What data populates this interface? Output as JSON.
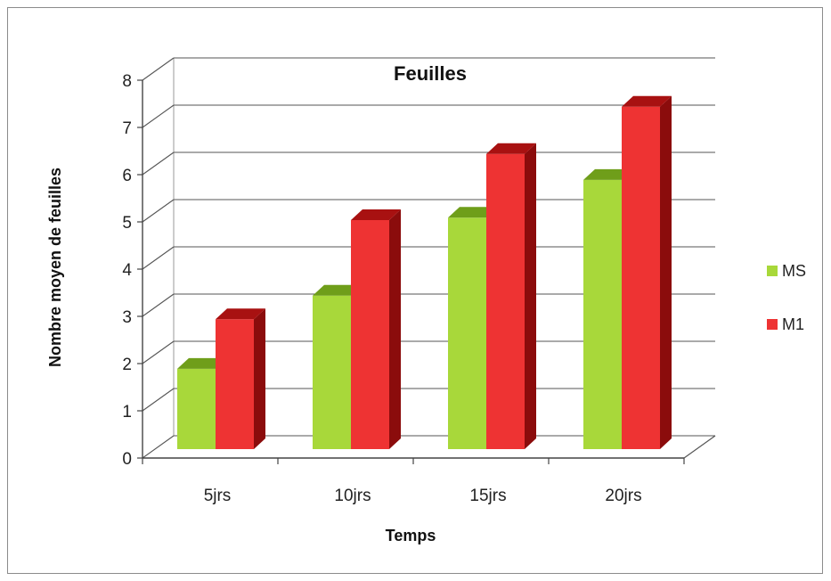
{
  "chart_data": {
    "type": "bar",
    "title": "Feuilles",
    "xlabel": "Temps",
    "ylabel": "Nombre moyen de feuilles",
    "categories": [
      "5jrs",
      "10jrs",
      "15jrs",
      "20jrs"
    ],
    "series": [
      {
        "name": "MS",
        "values": [
          1.7,
          3.25,
          4.9,
          5.7
        ],
        "color": "#a8d83a",
        "top_color": "#6f9e1a"
      },
      {
        "name": "M1",
        "values": [
          2.75,
          4.85,
          6.25,
          7.25
        ],
        "color": "#ee3333",
        "top_color": "#a81111",
        "side_color": "#8b0c0c"
      }
    ],
    "ylim": [
      0,
      8
    ],
    "yticks": [
      "0",
      "1",
      "2",
      "3",
      "4",
      "5",
      "6",
      "7",
      "8"
    ],
    "grid": true,
    "legend_position": "right",
    "style": "3d-clustered-column"
  }
}
